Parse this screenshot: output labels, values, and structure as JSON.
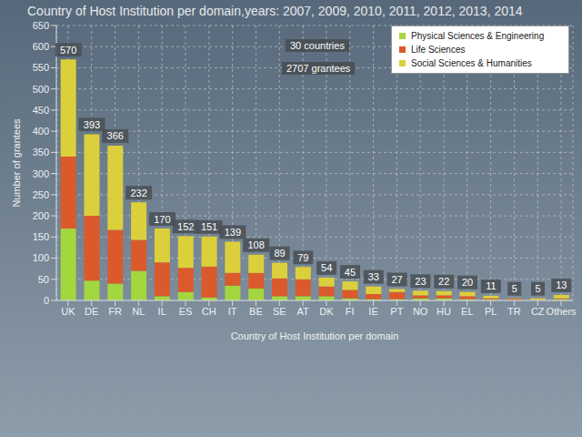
{
  "chart_data": {
    "type": "bar",
    "title": "Country of Host Institution per domain,years: 2007, 2009, 2010, 2011, 2012, 2013, 2014",
    "x_label": "Country of Host Institution per domain",
    "y_label": "Number of grantees",
    "annotations": [
      "30 countries",
      "2707 grantees"
    ],
    "categories": [
      "UK",
      "DE",
      "FR",
      "NL",
      "IL",
      "ES",
      "CH",
      "IT",
      "BE",
      "SE",
      "AT",
      "DK",
      "FI",
      "IE",
      "PT",
      "NO",
      "HU",
      "EL",
      "PL",
      "TR",
      "CZ",
      "Others"
    ],
    "series": [
      {
        "name": "Physical Sciences & Engineering",
        "color": "#a3d63f",
        "values": [
          170,
          47,
          40,
          70,
          10,
          20,
          7,
          35,
          28,
          10,
          10,
          10,
          5,
          3,
          3,
          5,
          5,
          3,
          2,
          1,
          1,
          3
        ]
      },
      {
        "name": "Life Sciences",
        "color": "#db5a2c",
        "values": [
          170,
          153,
          127,
          73,
          80,
          57,
          73,
          30,
          37,
          42,
          40,
          23,
          20,
          12,
          17,
          7,
          7,
          7,
          3,
          3,
          1,
          2
        ]
      },
      {
        "name": "Social Sciences & Humanities",
        "color": "#dccf3c",
        "values": [
          230,
          193,
          199,
          89,
          80,
          75,
          71,
          74,
          43,
          37,
          29,
          21,
          20,
          18,
          7,
          11,
          10,
          10,
          6,
          1,
          3,
          8
        ]
      }
    ],
    "totals": [
      570,
      393,
      366,
      232,
      170,
      152,
      151,
      139,
      108,
      89,
      79,
      54,
      45,
      33,
      27,
      23,
      22,
      20,
      11,
      5,
      5,
      13
    ],
    "ylim": [
      0,
      650
    ],
    "yticks": [
      0,
      50,
      100,
      150,
      200,
      250,
      300,
      350,
      400,
      450,
      500,
      550,
      600,
      650
    ],
    "stacked": true,
    "data_labels": true,
    "grid": true,
    "legend": "upper right"
  }
}
